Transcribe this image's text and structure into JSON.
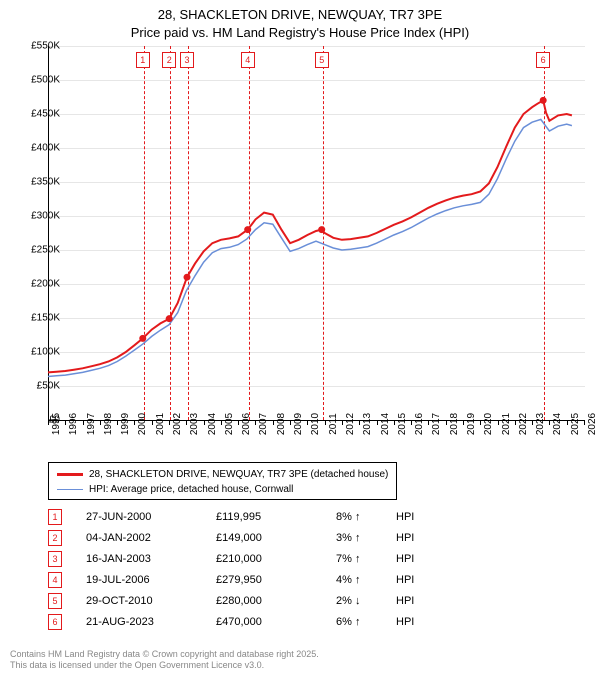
{
  "title_line1": "28, SHACKLETON DRIVE, NEWQUAY, TR7 3PE",
  "title_line2": "Price paid vs. HM Land Registry's House Price Index (HPI)",
  "chart": {
    "type": "line",
    "x_start": 1995,
    "x_end": 2026,
    "y_start": 0,
    "y_end": 550000,
    "y_ticks": [
      0,
      50000,
      100000,
      150000,
      200000,
      250000,
      300000,
      350000,
      400000,
      450000,
      500000,
      550000
    ],
    "y_tick_labels": [
      "£0",
      "£50K",
      "£100K",
      "£150K",
      "£200K",
      "£250K",
      "£300K",
      "£350K",
      "£400K",
      "£450K",
      "£500K",
      "£550K"
    ],
    "x_ticks": [
      1995,
      1996,
      1997,
      1998,
      1999,
      2000,
      2001,
      2002,
      2003,
      2004,
      2005,
      2006,
      2007,
      2008,
      2009,
      2010,
      2011,
      2012,
      2013,
      2014,
      2015,
      2016,
      2017,
      2018,
      2019,
      2020,
      2021,
      2022,
      2023,
      2024,
      2025,
      2026
    ],
    "grid_color": "#e6e6e6",
    "background_color": "#ffffff",
    "series": {
      "property": {
        "color": "#e31a1c",
        "width": 2,
        "label": "28, SHACKLETON DRIVE, NEWQUAY, TR7 3PE (detached house)",
        "points": [
          [
            1995.0,
            70000
          ],
          [
            1995.5,
            71000
          ],
          [
            1996.0,
            72000
          ],
          [
            1996.5,
            74000
          ],
          [
            1997.0,
            76000
          ],
          [
            1997.5,
            79000
          ],
          [
            1998.0,
            82000
          ],
          [
            1998.5,
            86000
          ],
          [
            1999.0,
            92000
          ],
          [
            1999.5,
            100000
          ],
          [
            2000.0,
            110000
          ],
          [
            2000.48,
            119995
          ],
          [
            2001.0,
            133000
          ],
          [
            2001.5,
            142000
          ],
          [
            2002.01,
            149000
          ],
          [
            2002.5,
            172000
          ],
          [
            2003.04,
            210000
          ],
          [
            2003.5,
            230000
          ],
          [
            2004.0,
            248000
          ],
          [
            2004.5,
            260000
          ],
          [
            2005.0,
            265000
          ],
          [
            2005.5,
            267000
          ],
          [
            2006.0,
            270000
          ],
          [
            2006.55,
            279950
          ],
          [
            2007.0,
            295000
          ],
          [
            2007.5,
            305000
          ],
          [
            2008.0,
            302000
          ],
          [
            2008.5,
            280000
          ],
          [
            2009.0,
            260000
          ],
          [
            2009.5,
            265000
          ],
          [
            2010.0,
            272000
          ],
          [
            2010.5,
            278000
          ],
          [
            2010.83,
            280000
          ],
          [
            2011.0,
            275000
          ],
          [
            2011.5,
            268000
          ],
          [
            2012.0,
            265000
          ],
          [
            2012.5,
            266000
          ],
          [
            2013.0,
            268000
          ],
          [
            2013.5,
            270000
          ],
          [
            2014.0,
            275000
          ],
          [
            2014.5,
            281000
          ],
          [
            2015.0,
            287000
          ],
          [
            2015.5,
            292000
          ],
          [
            2016.0,
            298000
          ],
          [
            2016.5,
            305000
          ],
          [
            2017.0,
            312000
          ],
          [
            2017.5,
            318000
          ],
          [
            2018.0,
            323000
          ],
          [
            2018.5,
            327000
          ],
          [
            2019.0,
            330000
          ],
          [
            2019.5,
            332000
          ],
          [
            2020.0,
            336000
          ],
          [
            2020.5,
            348000
          ],
          [
            2021.0,
            372000
          ],
          [
            2021.5,
            402000
          ],
          [
            2022.0,
            430000
          ],
          [
            2022.5,
            450000
          ],
          [
            2023.0,
            460000
          ],
          [
            2023.3,
            465000
          ],
          [
            2023.64,
            470000
          ],
          [
            2023.8,
            452000
          ],
          [
            2024.0,
            440000
          ],
          [
            2024.5,
            448000
          ],
          [
            2025.0,
            450000
          ],
          [
            2025.3,
            448000
          ]
        ]
      },
      "hpi": {
        "color": "#6a8fd8",
        "width": 1.5,
        "label": "HPI: Average price, detached house, Cornwall",
        "points": [
          [
            1995.0,
            64000
          ],
          [
            1995.5,
            65000
          ],
          [
            1996.0,
            66000
          ],
          [
            1996.5,
            68000
          ],
          [
            1997.0,
            70000
          ],
          [
            1997.5,
            73000
          ],
          [
            1998.0,
            76000
          ],
          [
            1998.5,
            80000
          ],
          [
            1999.0,
            86000
          ],
          [
            1999.5,
            94000
          ],
          [
            2000.0,
            103000
          ],
          [
            2000.5,
            112000
          ],
          [
            2001.0,
            123000
          ],
          [
            2001.5,
            132000
          ],
          [
            2002.0,
            140000
          ],
          [
            2002.5,
            158000
          ],
          [
            2003.0,
            190000
          ],
          [
            2003.5,
            212000
          ],
          [
            2004.0,
            232000
          ],
          [
            2004.5,
            246000
          ],
          [
            2005.0,
            252000
          ],
          [
            2005.5,
            254000
          ],
          [
            2006.0,
            258000
          ],
          [
            2006.5,
            266000
          ],
          [
            2007.0,
            280000
          ],
          [
            2007.5,
            290000
          ],
          [
            2008.0,
            288000
          ],
          [
            2008.5,
            268000
          ],
          [
            2009.0,
            248000
          ],
          [
            2009.5,
            252000
          ],
          [
            2010.0,
            258000
          ],
          [
            2010.5,
            263000
          ],
          [
            2011.0,
            258000
          ],
          [
            2011.5,
            253000
          ],
          [
            2012.0,
            250000
          ],
          [
            2012.5,
            251000
          ],
          [
            2013.0,
            253000
          ],
          [
            2013.5,
            255000
          ],
          [
            2014.0,
            260000
          ],
          [
            2014.5,
            266000
          ],
          [
            2015.0,
            272000
          ],
          [
            2015.5,
            277000
          ],
          [
            2016.0,
            283000
          ],
          [
            2016.5,
            290000
          ],
          [
            2017.0,
            297000
          ],
          [
            2017.5,
            303000
          ],
          [
            2018.0,
            308000
          ],
          [
            2018.5,
            312000
          ],
          [
            2019.0,
            315000
          ],
          [
            2019.5,
            317000
          ],
          [
            2020.0,
            320000
          ],
          [
            2020.5,
            332000
          ],
          [
            2021.0,
            355000
          ],
          [
            2021.5,
            384000
          ],
          [
            2022.0,
            410000
          ],
          [
            2022.5,
            430000
          ],
          [
            2023.0,
            438000
          ],
          [
            2023.5,
            442000
          ],
          [
            2024.0,
            425000
          ],
          [
            2024.5,
            432000
          ],
          [
            2025.0,
            435000
          ],
          [
            2025.3,
            433000
          ]
        ]
      }
    },
    "sale_markers": [
      {
        "n": "1",
        "year": 2000.48,
        "price": 119995,
        "color": "#e31a1c"
      },
      {
        "n": "2",
        "year": 2002.01,
        "price": 149000,
        "color": "#e31a1c"
      },
      {
        "n": "3",
        "year": 2003.04,
        "price": 210000,
        "color": "#e31a1c"
      },
      {
        "n": "4",
        "year": 2006.55,
        "price": 279950,
        "color": "#e31a1c"
      },
      {
        "n": "5",
        "year": 2010.83,
        "price": 280000,
        "color": "#e31a1c"
      },
      {
        "n": "6",
        "year": 2023.64,
        "price": 470000,
        "color": "#e31a1c"
      }
    ]
  },
  "legend": {
    "items": [
      {
        "color": "#e31a1c",
        "label": "28, SHACKLETON DRIVE, NEWQUAY, TR7 3PE (detached house)",
        "width": 2.5
      },
      {
        "color": "#6a8fd8",
        "label": "HPI: Average price, detached house, Cornwall",
        "width": 1.5
      }
    ]
  },
  "table": {
    "rows": [
      {
        "n": "1",
        "date": "27-JUN-2000",
        "price": "£119,995",
        "pct": "8%",
        "arrow": "↑",
        "hpi": "HPI"
      },
      {
        "n": "2",
        "date": "04-JAN-2002",
        "price": "£149,000",
        "pct": "3%",
        "arrow": "↑",
        "hpi": "HPI"
      },
      {
        "n": "3",
        "date": "16-JAN-2003",
        "price": "£210,000",
        "pct": "7%",
        "arrow": "↑",
        "hpi": "HPI"
      },
      {
        "n": "4",
        "date": "19-JUL-2006",
        "price": "£279,950",
        "pct": "4%",
        "arrow": "↑",
        "hpi": "HPI"
      },
      {
        "n": "5",
        "date": "29-OCT-2010",
        "price": "£280,000",
        "pct": "2%",
        "arrow": "↓",
        "hpi": "HPI"
      },
      {
        "n": "6",
        "date": "21-AUG-2023",
        "price": "£470,000",
        "pct": "6%",
        "arrow": "↑",
        "hpi": "HPI"
      }
    ]
  },
  "footer_line1": "Contains HM Land Registry data © Crown copyright and database right 2025.",
  "footer_line2": "This data is licensed under the Open Government Licence v3.0."
}
